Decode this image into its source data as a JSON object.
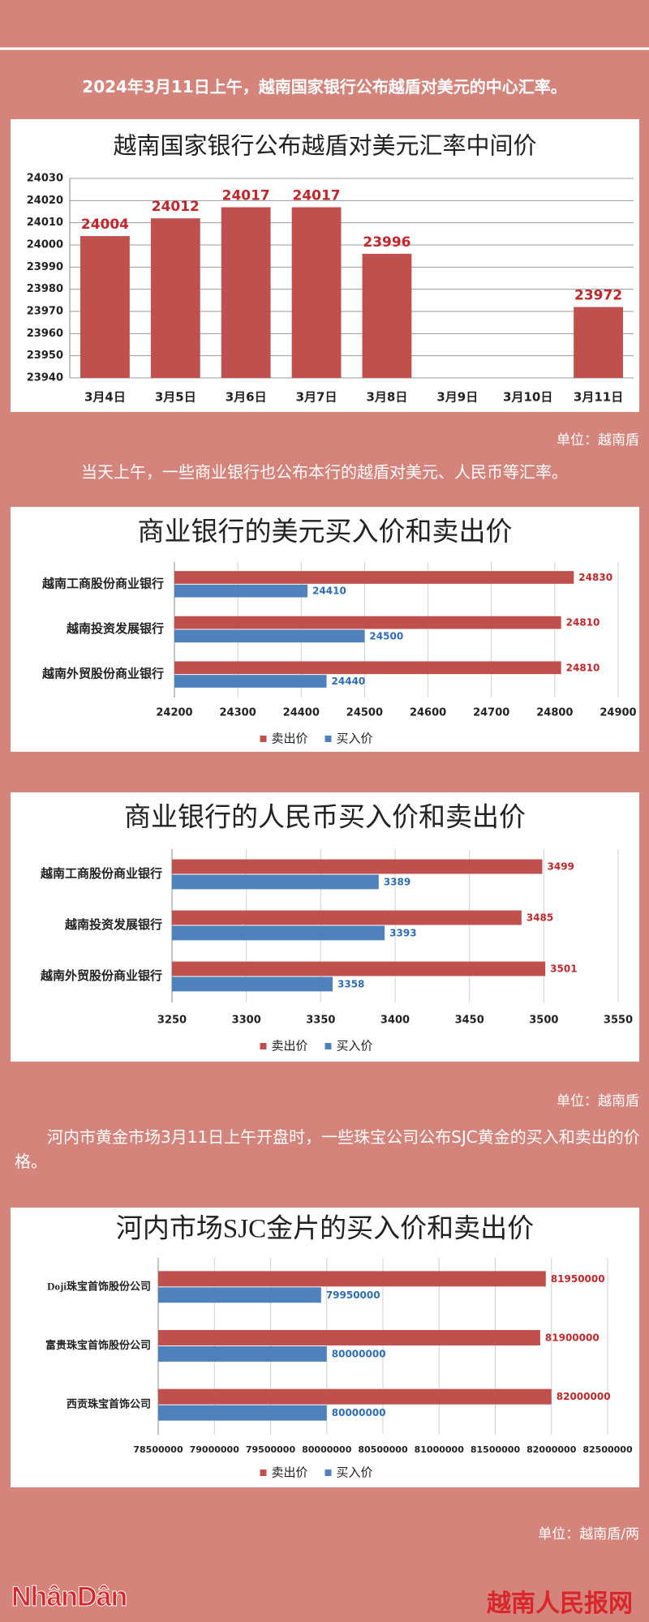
{
  "intro": "2024年3月11日上午，越南国家银行公布越盾对美元的中心汇率。",
  "paragraph_2": "当天上午，一些商业银行也公布本行的越盾对美元、人民币等汇率。",
  "paragraph_3": "河内市黄金市场3月11日上午开盘时，一些珠宝公司公布SJC黄金的买入和卖出的价格。",
  "chart_data": [
    {
      "type": "bar",
      "title": "越南国家银行公布越盾对美元汇率中间价",
      "categories": [
        "3月4日",
        "3月5日",
        "3月6日",
        "3月7日",
        "3月8日",
        "3月9日",
        "3月10日",
        "3月11日"
      ],
      "values": [
        24004,
        24012,
        24017,
        24017,
        23996,
        null,
        null,
        23972
      ],
      "color": "#c0504d",
      "ylim": [
        23940,
        24030
      ],
      "yticks": [
        23940,
        23950,
        23960,
        23970,
        23980,
        23990,
        24000,
        24010,
        24020,
        24030
      ],
      "grid": true,
      "unit": "单位：越南盾"
    },
    {
      "type": "barh",
      "title": "商业银行的美元买入价和卖出价",
      "categories": [
        "越南工商股份商业银行",
        "越南投资发展银行",
        "越南外贸股份商业银行"
      ],
      "series": [
        {
          "name": "卖出价",
          "color": "#c0504d",
          "values": [
            24830,
            24810,
            24810
          ]
        },
        {
          "name": "买入价",
          "color": "#4f81bd",
          "values": [
            24410,
            24500,
            24440
          ]
        }
      ],
      "xlim": [
        24200,
        24900
      ],
      "xticks": [
        24200,
        24300,
        24400,
        24500,
        24600,
        24700,
        24800,
        24900
      ],
      "grid": true,
      "legend": "bottom"
    },
    {
      "type": "barh",
      "title": "商业银行的人民币买入价和卖出价",
      "categories": [
        "越南工商股份商业银行",
        "越南投资发展银行",
        "越南外贸股份商业银行"
      ],
      "series": [
        {
          "name": "卖出价",
          "color": "#c0504d",
          "values": [
            3499,
            3485,
            3501
          ]
        },
        {
          "name": "买入价",
          "color": "#4f81bd",
          "values": [
            3389,
            3393,
            3358
          ]
        }
      ],
      "xlim": [
        3250,
        3550
      ],
      "xticks": [
        3250,
        3300,
        3350,
        3400,
        3450,
        3500,
        3550
      ],
      "grid": true,
      "legend": "bottom",
      "unit": "单位：越南盾"
    },
    {
      "type": "barh",
      "title": "河内市场SJC金片的买入价和卖出价",
      "categories": [
        "Doji珠宝首饰股份公司",
        "富贵珠宝首饰股份公司",
        "西贡珠宝首饰公司"
      ],
      "series": [
        {
          "name": "卖出价",
          "color": "#c0504d",
          "values": [
            81950000,
            81900000,
            82000000
          ]
        },
        {
          "name": "买入价",
          "color": "#4f81bd",
          "values": [
            79950000,
            80000000,
            80000000
          ]
        }
      ],
      "xlim": [
        78500000,
        82500000
      ],
      "xticks": [
        78500000,
        79000000,
        79500000,
        80000000,
        80500000,
        81000000,
        81500000,
        82000000,
        82500000
      ],
      "grid": true,
      "legend": "bottom",
      "unit": "单位：越南盾/两"
    }
  ],
  "footer": {
    "logo": "NhânDân",
    "site": "越南人民报网"
  }
}
